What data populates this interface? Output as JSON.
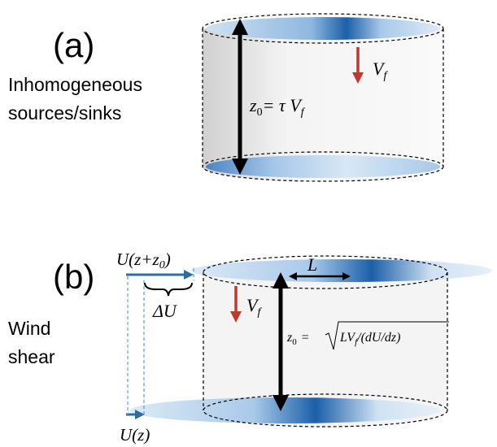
{
  "panel_a": {
    "label": "(a)",
    "description": [
      "Inhomogeneous",
      "sources/sinks"
    ],
    "fall_speed": {
      "symbol": "V",
      "subscript": "f"
    },
    "height": {
      "lhs": "z",
      "lhs_subscript": "0",
      "rhs": "= τ V",
      "rhs_subscript": "f"
    }
  },
  "panel_b": {
    "label": "(b)",
    "description": [
      "Wind",
      "shear"
    ],
    "upper_wind": {
      "prefix": "U(z+z",
      "subscript": "0",
      "suffix": ")"
    },
    "shear": "ΔU",
    "length": "L",
    "fall_speed": {
      "symbol": "V",
      "subscript": "f"
    },
    "height": {
      "lhs": "z",
      "lhs_subscript": "0",
      "rhs": "=",
      "radicand": "LV",
      "radicand_subscript": "f",
      "radicand_rest": "/(dU/dz)"
    },
    "lower_wind": "U(z)"
  }
}
